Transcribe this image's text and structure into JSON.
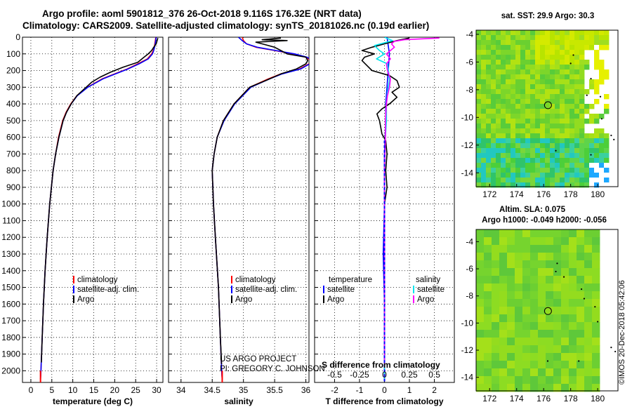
{
  "header": {
    "line1": "Argo profile: aoml 5901812_376 26-Oct-2018 9.116S 176.32E (NRT data)",
    "line2": "Climatology: CARS2009. Satellite-adjusted climatology: synTS_20181026.nc (0.19d earlier)"
  },
  "credit": {
    "line1": "US ARGO PROJECT",
    "line2": "PI: GREGORY C. JOHNSON"
  },
  "stamp": "©IMOS 20-Dec-2018 05:42:06",
  "colors": {
    "climatology": "#ff0000",
    "satellite": "#0000ff",
    "argo": "#000000",
    "satellite_salinity": "#00e5ee",
    "argo_salinity": "#ff00ff",
    "bar": "#0000ff"
  },
  "chart_data": [
    {
      "id": "temperature",
      "type": "line",
      "title": "",
      "xlabel": "temperature (deg C)",
      "ylabel": "",
      "xlim": [
        -2,
        31.5
      ],
      "ylim": [
        2070,
        0
      ],
      "xticks": [
        "0",
        "5",
        "10",
        "15",
        "20",
        "25",
        "30"
      ],
      "xtick_values": [
        0,
        5,
        10,
        15,
        20,
        25,
        30
      ],
      "yticks": [
        "0",
        "100",
        "200",
        "300",
        "400",
        "500",
        "600",
        "700",
        "800",
        "900",
        "1000",
        "1100",
        "1200",
        "1300",
        "1400",
        "1500",
        "1600",
        "1700",
        "1800",
        "1900",
        "2000"
      ],
      "ytick_values": [
        0,
        100,
        200,
        300,
        400,
        500,
        600,
        700,
        800,
        900,
        1000,
        1100,
        1200,
        1300,
        1400,
        1500,
        1600,
        1700,
        1800,
        1900,
        2000
      ],
      "grid": true,
      "legend": {
        "position": "lower-right",
        "entries": [
          "climatology",
          "satellite-adj. clim.",
          "Argo"
        ]
      },
      "series": [
        {
          "name": "climatology",
          "color": "#ff0000",
          "depth": [
            0,
            50,
            80,
            100,
            130,
            160,
            190,
            220,
            250,
            300,
            350,
            400,
            450,
            500,
            600,
            700,
            800,
            1000,
            1200,
            1400,
            1600,
            1800,
            2000,
            2050
          ],
          "values": [
            29.8,
            29.5,
            29.2,
            28.8,
            27.8,
            25.5,
            23.0,
            20.0,
            17.0,
            13.5,
            11.0,
            9.5,
            8.4,
            7.6,
            6.6,
            5.9,
            5.3,
            4.5,
            3.9,
            3.4,
            3.0,
            2.7,
            2.4,
            2.3
          ]
        },
        {
          "name": "satellite-adj. clim.",
          "color": "#0000ff",
          "depth": [
            0,
            50,
            80,
            100,
            130,
            160,
            190,
            220,
            250,
            300,
            350,
            400,
            450,
            500,
            600,
            700,
            800,
            1000,
            1200,
            1400,
            1600,
            1800,
            2000,
            2050
          ],
          "values": [
            29.9,
            29.6,
            29.3,
            29.0,
            28.0,
            25.8,
            23.2,
            20.2,
            17.2,
            13.6,
            11.1,
            9.6,
            8.5,
            7.7,
            6.7,
            5.9,
            5.3,
            4.5,
            3.9,
            3.4,
            3.0,
            2.7,
            2.4,
            2.3
          ]
        },
        {
          "name": "Argo",
          "color": "#000000",
          "depth": [
            5,
            40,
            60,
            80,
            100,
            120,
            150,
            180,
            210,
            240,
            270,
            300,
            350,
            400,
            450,
            500,
            600,
            700,
            800,
            1000,
            1200,
            1400,
            1600,
            1800,
            1950
          ],
          "values": [
            30.3,
            29.9,
            29.3,
            28.8,
            28.0,
            27.0,
            25.5,
            22.0,
            19.0,
            16.5,
            14.5,
            13.2,
            11.0,
            9.6,
            8.5,
            7.7,
            6.7,
            5.9,
            5.3,
            4.5,
            3.9,
            3.4,
            3.0,
            2.7,
            2.5
          ]
        }
      ]
    },
    {
      "id": "salinity",
      "type": "line",
      "title": "",
      "xlabel": "salinity",
      "ylabel": "",
      "xlim": [
        33.8,
        36.05
      ],
      "ylim": [
        2070,
        0
      ],
      "xticks": [
        "34",
        "34.5",
        "35",
        "35.5",
        "36"
      ],
      "xtick_values": [
        34,
        34.5,
        35,
        35.5,
        36
      ],
      "grid": true,
      "legend": {
        "position": "lower-right",
        "entries": [
          "climatology",
          "satellite-adj. clim.",
          "Argo"
        ]
      },
      "series": [
        {
          "name": "climatology",
          "color": "#ff0000",
          "depth": [
            0,
            20,
            40,
            60,
            80,
            100,
            120,
            140,
            160,
            190,
            220,
            250,
            300,
            400,
            500,
            600,
            700,
            800,
            1000,
            1200,
            1500,
            1800,
            2000,
            2050
          ],
          "values": [
            34.98,
            35.0,
            35.05,
            35.2,
            35.5,
            35.8,
            36.0,
            36.08,
            36.05,
            35.9,
            35.6,
            35.4,
            35.1,
            34.85,
            34.68,
            34.58,
            34.53,
            34.5,
            34.52,
            34.55,
            34.6,
            34.63,
            34.65,
            34.66
          ]
        },
        {
          "name": "satellite-adj. clim.",
          "color": "#0000ff",
          "depth": [
            0,
            20,
            40,
            60,
            80,
            100,
            120,
            140,
            160,
            190,
            220,
            250,
            300,
            400,
            500,
            600,
            700,
            800,
            1000,
            1200,
            1500,
            1800,
            2000,
            2050
          ],
          "values": [
            34.92,
            34.98,
            35.05,
            35.22,
            35.52,
            35.82,
            36.02,
            36.1,
            36.06,
            35.92,
            35.62,
            35.42,
            35.12,
            34.86,
            34.69,
            34.58,
            34.53,
            34.5,
            34.52,
            34.55,
            34.6,
            34.63,
            34.65,
            34.66
          ]
        },
        {
          "name": "Argo",
          "color": "#000000",
          "depth": [
            5,
            15,
            20,
            30,
            40,
            60,
            80,
            100,
            120,
            140,
            160,
            190,
            220,
            250,
            300,
            400,
            500,
            600,
            700,
            800,
            1000,
            1200,
            1500,
            1800,
            1960
          ],
          "values": [
            35.6,
            35.3,
            35.7,
            35.2,
            35.3,
            35.5,
            35.6,
            35.7,
            36.0,
            36.03,
            36.0,
            35.85,
            35.6,
            35.42,
            35.1,
            34.85,
            34.68,
            34.58,
            34.53,
            34.5,
            34.52,
            34.55,
            34.6,
            34.63,
            34.65
          ]
        }
      ]
    },
    {
      "id": "differences",
      "type": "line",
      "title": "",
      "xlabel": "T difference from climatology",
      "xlabel_top": "S difference from climatology",
      "ylabel": "",
      "xlim": [
        -2.8,
        2.8
      ],
      "ylim": [
        2070,
        0
      ],
      "xticks": [
        "-2",
        "-1",
        "0",
        "1",
        "2"
      ],
      "xtick_values": [
        -2,
        -1,
        0,
        1,
        2
      ],
      "xticks_salinity": [
        "-0.5",
        "-0.25",
        "0",
        "0.25",
        "0.5"
      ],
      "xtick_values_salinity": [
        -0.5,
        -0.25,
        0,
        0.25,
        0.5
      ],
      "grid": true,
      "legend": {
        "position": "lower-center",
        "temperature_title": "temperature",
        "salinity_title": "salinity",
        "temperature_entries": [
          "satellite",
          "Argo"
        ],
        "salinity_entries": [
          "satellite",
          "Argo"
        ]
      },
      "series": [
        {
          "name": "temperature satellite",
          "color": "#0000ff",
          "depth": [
            0,
            100,
            200,
            300,
            400,
            500,
            700,
            1000,
            1300,
            1600,
            1900,
            2050
          ],
          "values": [
            0.1,
            0.2,
            0.15,
            0.1,
            0.05,
            0.05,
            0.0,
            0.0,
            -0.05,
            0.0,
            0.0,
            0.0
          ]
        },
        {
          "name": "temperature Argo",
          "color": "#000000",
          "depth": [
            5,
            20,
            40,
            60,
            80,
            100,
            120,
            140,
            170,
            200,
            230,
            260,
            300,
            330,
            360,
            400,
            430,
            460,
            500,
            540,
            580,
            620,
            700,
            800,
            900,
            1000,
            1200,
            1400,
            1600,
            1800,
            1950
          ],
          "values": [
            1.0,
            0.5,
            0.0,
            -0.5,
            -0.9,
            -0.4,
            -0.8,
            -0.9,
            -0.7,
            -0.5,
            0.2,
            0.5,
            0.6,
            0.3,
            0.5,
            0.2,
            -0.1,
            -0.3,
            -0.2,
            -0.15,
            -0.1,
            0.05,
            0.1,
            0.05,
            0.1,
            0.0,
            0.0,
            0.0,
            0.0,
            0.0,
            0.0
          ]
        },
        {
          "name": "salinity satellite",
          "color": "#00e5ee",
          "depth": [
            0,
            20,
            50,
            80,
            100,
            130,
            160,
            200,
            260,
            330,
            400,
            500,
            600,
            800,
            1000,
            1400,
            1800,
            2050
          ],
          "values": [
            0.0,
            0.08,
            -0.1,
            -0.05,
            0.0,
            -0.08,
            0.03,
            0.04,
            0.05,
            0.03,
            0.02,
            0.02,
            0.01,
            0.0,
            0.0,
            0.0,
            0.0,
            0.0
          ]
        },
        {
          "name": "salinity Argo",
          "color": "#ff00ff",
          "depth": [
            5,
            15,
            25,
            40,
            60,
            80,
            100,
            130,
            160,
            200,
            250,
            300,
            350,
            400,
            500,
            600,
            800,
            1000,
            1400,
            1800,
            1960
          ],
          "values": [
            0.55,
            0.2,
            0.1,
            0.07,
            0.1,
            0.06,
            0.02,
            0.06,
            0.02,
            0.03,
            0.06,
            0.05,
            0.03,
            0.02,
            0.01,
            0.01,
            0.0,
            0.0,
            0.0,
            0.0,
            0.0
          ]
        }
      ]
    },
    {
      "id": "sst-map",
      "type": "heatmap",
      "title": "sat. SST: 29.9  Argo: 30.3",
      "xlim": [
        171,
        181.5
      ],
      "ylim": [
        -15,
        -3.7
      ],
      "xticks": [
        "172",
        "174",
        "176",
        "178",
        "180"
      ],
      "xtick_values": [
        172,
        174,
        176,
        178,
        180
      ],
      "yticks": [
        "-4",
        "-6",
        "-8",
        "-10",
        "-12",
        "-14"
      ],
      "ytick_values": [
        -4,
        -6,
        -8,
        -10,
        -12,
        -14
      ],
      "marker": {
        "lon": 176.32,
        "lat": -9.116
      },
      "missing_data_color": "#ffffff"
    },
    {
      "id": "sla-map",
      "type": "heatmap",
      "title": "Altim. SLA: 0.075",
      "subtitle": "Argo h1000: -0.049 h2000: -0.056",
      "xlim": [
        171,
        181.5
      ],
      "ylim": [
        -15,
        -3.1
      ],
      "xticks": [
        "172",
        "174",
        "176",
        "178",
        "180"
      ],
      "xtick_values": [
        172,
        174,
        176,
        178,
        180
      ],
      "yticks": [
        "-4",
        "-6",
        "-8",
        "-10",
        "-12",
        "-14"
      ],
      "ytick_values": [
        -4,
        -6,
        -8,
        -10,
        -12,
        -14
      ],
      "marker": {
        "lon": 176.32,
        "lat": -9.116
      }
    }
  ]
}
